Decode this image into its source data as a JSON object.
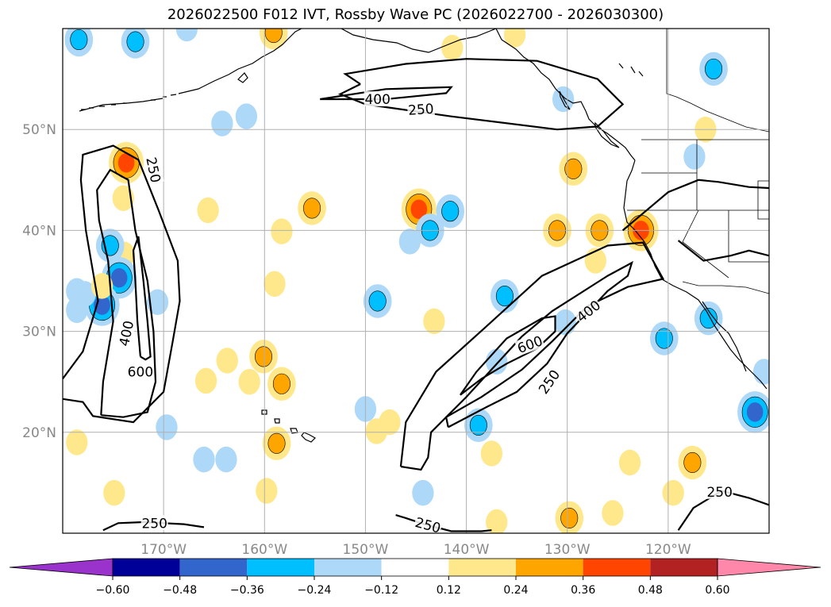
{
  "title": "2026022500 F012 IVT, Rossby Wave PC (2026022700 - 2026030300)",
  "map": {
    "lon_range": [
      -180,
      -110
    ],
    "lat_range": [
      10,
      60
    ],
    "lon_ticks": [
      {
        "value": -170,
        "label": "170°W"
      },
      {
        "value": -160,
        "label": "160°W"
      },
      {
        "value": -150,
        "label": "150°W"
      },
      {
        "value": -140,
        "label": "140°W"
      },
      {
        "value": -130,
        "label": "130°W"
      },
      {
        "value": -120,
        "label": "120°W"
      }
    ],
    "lat_ticks": [
      {
        "value": 20,
        "label": "20°N"
      },
      {
        "value": 30,
        "label": "30°N"
      },
      {
        "value": 40,
        "label": "40°N"
      },
      {
        "value": 50,
        "label": "50°N"
      }
    ],
    "contour_labels": [
      {
        "text": "400",
        "lon": -148.8,
        "lat": 53.0,
        "rot": 0
      },
      {
        "text": "250",
        "lon": -144.5,
        "lat": 52.0,
        "rot": -4
      },
      {
        "text": "250",
        "lon": -171.0,
        "lat": 46.0,
        "rot": 78
      },
      {
        "text": "400",
        "lon": -173.7,
        "lat": 29.8,
        "rot": -78
      },
      {
        "text": "600",
        "lon": -172.3,
        "lat": 26.0,
        "rot": 0
      },
      {
        "text": "600",
        "lon": -133.7,
        "lat": 28.7,
        "rot": -20
      },
      {
        "text": "400",
        "lon": -127.9,
        "lat": 32.0,
        "rot": -38
      },
      {
        "text": "250",
        "lon": -131.8,
        "lat": 25.0,
        "rot": -55
      },
      {
        "text": "250",
        "lon": -170.9,
        "lat": 11.0,
        "rot": 0
      },
      {
        "text": "250",
        "lon": -143.8,
        "lat": 10.8,
        "rot": 15
      },
      {
        "text": "250",
        "lon": -114.9,
        "lat": 14.1,
        "rot": 0
      }
    ],
    "ivt_contours": [
      {
        "level": 250,
        "path": [
          [
            -180,
            25.3
          ],
          [
            -178,
            28
          ],
          [
            -176.5,
            33
          ],
          [
            -177.7,
            40
          ],
          [
            -178.2,
            45
          ],
          [
            -178,
            47.5
          ],
          [
            -175,
            48.4
          ],
          [
            -172.5,
            47
          ],
          [
            -170.5,
            42
          ],
          [
            -168.6,
            37
          ],
          [
            -168.4,
            33
          ],
          [
            -169.1,
            29
          ],
          [
            -170,
            24
          ],
          [
            -173,
            21
          ],
          [
            -177,
            21.6
          ],
          [
            -178,
            23
          ],
          [
            -180,
            23.3
          ]
        ]
      },
      {
        "level": 400,
        "path": [
          [
            -176.2,
            21.7
          ],
          [
            -176,
            25
          ],
          [
            -175,
            31
          ],
          [
            -175.5,
            37
          ],
          [
            -176.4,
            41
          ],
          [
            -176.6,
            44
          ],
          [
            -175.3,
            46
          ],
          [
            -173.5,
            45
          ],
          [
            -172.8,
            40
          ],
          [
            -171.6,
            35
          ],
          [
            -171,
            30
          ],
          [
            -170.8,
            25
          ],
          [
            -171.6,
            22
          ],
          [
            -174,
            21.5
          ],
          [
            -176.2,
            21.7
          ]
        ]
      },
      {
        "level": 600,
        "path": [
          [
            -172.3,
            27.5
          ],
          [
            -172.6,
            31
          ],
          [
            -172.8,
            35
          ],
          [
            -173,
            38
          ],
          [
            -172.5,
            39.4
          ],
          [
            -172,
            35
          ],
          [
            -171.6,
            31
          ],
          [
            -171.3,
            27.5
          ],
          [
            -171.8,
            27.2
          ],
          [
            -172.3,
            27.5
          ]
        ]
      },
      {
        "level": 250,
        "path": [
          [
            -150.5,
            54.5
          ],
          [
            -152,
            55.5
          ],
          [
            -146,
            56.5
          ],
          [
            -140,
            57
          ],
          [
            -133,
            56.8
          ],
          [
            -127,
            55
          ],
          [
            -124.5,
            52.5
          ],
          [
            -127,
            50.3
          ],
          [
            -131,
            50
          ],
          [
            -141.5,
            51.3
          ],
          [
            -150,
            52.5
          ],
          [
            -152.5,
            53.5
          ],
          [
            -150.5,
            54.5
          ]
        ]
      },
      {
        "level": 400,
        "path": [
          [
            -154.5,
            53
          ],
          [
            -148,
            54
          ],
          [
            -141.5,
            54.2
          ],
          [
            -142,
            53.6
          ],
          [
            -148,
            53
          ],
          [
            -154.5,
            53
          ]
        ]
      },
      {
        "level": 250,
        "path": [
          [
            -143.8,
            10.8
          ],
          [
            -141.5,
            10.2
          ],
          [
            -138.5,
            10.2
          ],
          [
            -137.5,
            10.3
          ]
        ]
      },
      {
        "level": 250,
        "path": [
          [
            -142.5,
            10.4
          ],
          [
            -144.5,
            11
          ],
          [
            -146,
            11.5
          ],
          [
            -147,
            11.8
          ]
        ]
      },
      {
        "level": 250,
        "path": [
          [
            -146.5,
            16.6
          ],
          [
            -146,
            21
          ],
          [
            -143,
            26
          ],
          [
            -138,
            30.5
          ],
          [
            -132.5,
            35.5
          ],
          [
            -126,
            38.5
          ],
          [
            -122.5,
            38.8
          ],
          [
            -120.5,
            35.2
          ],
          [
            -124,
            34.4
          ],
          [
            -128,
            32.5
          ],
          [
            -131.5,
            29
          ],
          [
            -134.5,
            26.2
          ],
          [
            -138.5,
            23.5
          ],
          [
            -142,
            21.5
          ],
          [
            -143.5,
            20
          ],
          [
            -143.8,
            17.5
          ],
          [
            -144.5,
            16.3
          ],
          [
            -146.5,
            16.6
          ]
        ]
      },
      {
        "level": 400,
        "path": [
          [
            -141.8,
            20.5
          ],
          [
            -142,
            21.5
          ],
          [
            -140,
            23.5
          ],
          [
            -134.5,
            29.5
          ],
          [
            -131.5,
            32
          ],
          [
            -126,
            35.5
          ],
          [
            -123.6,
            36.8
          ],
          [
            -124,
            35.5
          ],
          [
            -126,
            34
          ],
          [
            -127.6,
            32.3
          ],
          [
            -130,
            29.8
          ],
          [
            -132,
            26.8
          ],
          [
            -135,
            24
          ],
          [
            -138,
            22.5
          ],
          [
            -141.8,
            20.5
          ]
        ]
      },
      {
        "level": 600,
        "path": [
          [
            -140.6,
            23.7
          ],
          [
            -139,
            26
          ],
          [
            -136,
            29.3
          ],
          [
            -132.5,
            31.3
          ],
          [
            -131.2,
            31.5
          ],
          [
            -131.2,
            30
          ],
          [
            -133,
            28.3
          ],
          [
            -136,
            26.8
          ],
          [
            -138.5,
            25.3
          ],
          [
            -140.6,
            23.7
          ]
        ]
      },
      {
        "level": 250,
        "path": [
          [
            -176,
            10.3
          ],
          [
            -174.5,
            11
          ],
          [
            -172,
            11.1
          ],
          [
            -168,
            10.9
          ],
          [
            -166,
            10.6
          ]
        ]
      },
      {
        "level": 250,
        "path": [
          [
            -119,
            10.3
          ],
          [
            -117.5,
            12.5
          ],
          [
            -114.7,
            14.2
          ],
          [
            -112,
            13.5
          ],
          [
            -110,
            12.8
          ]
        ]
      },
      {
        "level": 250,
        "path": [
          [
            -124.5,
            40
          ],
          [
            -120,
            43.8
          ],
          [
            -117,
            45
          ],
          [
            -115,
            44.8
          ],
          [
            -112,
            44.3
          ],
          [
            -110,
            44.2
          ]
        ]
      },
      {
        "level": 250,
        "path": [
          [
            -119,
            39
          ],
          [
            -116.5,
            37
          ],
          [
            -113.8,
            37.5
          ],
          [
            -112,
            38
          ],
          [
            -110,
            37.5
          ]
        ]
      }
    ]
  },
  "colorbar": {
    "levels": [
      "−0.60",
      "−0.48",
      "−0.36",
      "−0.24",
      "−0.12",
      "0.12",
      "0.24",
      "0.36",
      "0.48",
      "0.60"
    ],
    "colors": [
      "#9933cc",
      "#000099",
      "#3366cc",
      "#00bfff",
      "#add8f7",
      "#ffffff",
      "#ffe88c",
      "#ffa500",
      "#ff4500",
      "#b22222",
      "#ff88aa"
    ]
  },
  "blobs": [
    {
      "lon": -173.7,
      "lat": 46.7,
      "v": 0.4
    },
    {
      "lon": -174.0,
      "lat": 43.2,
      "v": 0.2
    },
    {
      "lon": -173.9,
      "lat": 37.6,
      "v": 0.2
    },
    {
      "lon": -174.4,
      "lat": 35.3,
      "v": -0.4
    },
    {
      "lon": -175.3,
      "lat": 38.5,
      "v": -0.3
    },
    {
      "lon": -176.1,
      "lat": 32.6,
      "v": -0.4
    },
    {
      "lon": -177.8,
      "lat": 33.7,
      "v": -0.2
    },
    {
      "lon": -176.1,
      "lat": 34.5,
      "v": 0.2
    },
    {
      "lon": -178.4,
      "lat": 58.9,
      "v": -0.3
    },
    {
      "lon": -172.8,
      "lat": 58.7,
      "v": -0.3
    },
    {
      "lon": -167.7,
      "lat": 60.0,
      "v": -0.2
    },
    {
      "lon": -161.8,
      "lat": 51.3,
      "v": -0.2
    },
    {
      "lon": -164.2,
      "lat": 50.6,
      "v": -0.2
    },
    {
      "lon": -159.1,
      "lat": 59.6,
      "v": 0.3
    },
    {
      "lon": -165.6,
      "lat": 42.0,
      "v": 0.15
    },
    {
      "lon": -155.3,
      "lat": 42.2,
      "v": 0.3
    },
    {
      "lon": -158.3,
      "lat": 39.9,
      "v": 0.15
    },
    {
      "lon": -159.0,
      "lat": 34.7,
      "v": 0.2
    },
    {
      "lon": -160.1,
      "lat": 27.5,
      "v": 0.35
    },
    {
      "lon": -158.3,
      "lat": 24.8,
      "v": 0.35
    },
    {
      "lon": -161.5,
      "lat": 25.0,
      "v": 0.2
    },
    {
      "lon": -163.7,
      "lat": 27.1,
      "v": 0.15
    },
    {
      "lon": -165.8,
      "lat": 25.1,
      "v": 0.15
    },
    {
      "lon": -158.8,
      "lat": 18.9,
      "v": 0.35
    },
    {
      "lon": -159.8,
      "lat": 14.2,
      "v": 0.15
    },
    {
      "lon": -163.8,
      "lat": 17.3,
      "v": -0.2
    },
    {
      "lon": -166.0,
      "lat": 17.3,
      "v": -0.2
    },
    {
      "lon": -169.7,
      "lat": 20.5,
      "v": -0.2
    },
    {
      "lon": -178.6,
      "lat": 19.0,
      "v": 0.15
    },
    {
      "lon": -174.9,
      "lat": 14.0,
      "v": 0.2
    },
    {
      "lon": -178.6,
      "lat": 34.0,
      "v": -0.15
    },
    {
      "lon": -178.6,
      "lat": 32.1,
      "v": -0.15
    },
    {
      "lon": -144.7,
      "lat": 42.1,
      "v": 0.38
    },
    {
      "lon": -141.6,
      "lat": 41.9,
      "v": -0.25
    },
    {
      "lon": -143.6,
      "lat": 40.0,
      "v": -0.25
    },
    {
      "lon": -145.6,
      "lat": 38.9,
      "v": -0.15
    },
    {
      "lon": -148.8,
      "lat": 33.0,
      "v": -0.25
    },
    {
      "lon": -150.0,
      "lat": 22.3,
      "v": -0.2
    },
    {
      "lon": -147.6,
      "lat": 21.0,
      "v": 0.2
    },
    {
      "lon": -148.9,
      "lat": 20.1,
      "v": 0.15
    },
    {
      "lon": -143.2,
      "lat": 31.0,
      "v": 0.15
    },
    {
      "lon": -144.3,
      "lat": 14.0,
      "v": -0.2
    },
    {
      "lon": -138.8,
      "lat": 20.7,
      "v": -0.25
    },
    {
      "lon": -137.5,
      "lat": 17.9,
      "v": 0.2
    },
    {
      "lon": -137.0,
      "lat": 11.1,
      "v": 0.15
    },
    {
      "lon": -136.2,
      "lat": 33.5,
      "v": -0.25
    },
    {
      "lon": -131.0,
      "lat": 40.0,
      "v": 0.3
    },
    {
      "lon": -126.8,
      "lat": 40.0,
      "v": 0.25
    },
    {
      "lon": -129.4,
      "lat": 46.1,
      "v": 0.3
    },
    {
      "lon": -122.7,
      "lat": 40.0,
      "v": 0.42
    },
    {
      "lon": -127.2,
      "lat": 37.0,
      "v": 0.2
    },
    {
      "lon": -129.8,
      "lat": 11.5,
      "v": 0.3
    },
    {
      "lon": -125.5,
      "lat": 12.0,
      "v": 0.2
    },
    {
      "lon": -123.8,
      "lat": 17.0,
      "v": 0.15
    },
    {
      "lon": -117.6,
      "lat": 17.0,
      "v": 0.25
    },
    {
      "lon": -119.5,
      "lat": 14.0,
      "v": 0.15
    },
    {
      "lon": -120.4,
      "lat": 29.3,
      "v": -0.25
    },
    {
      "lon": -116.0,
      "lat": 31.3,
      "v": -0.25
    },
    {
      "lon": -111.4,
      "lat": 22.0,
      "v": -0.45
    },
    {
      "lon": -115.5,
      "lat": 56.0,
      "v": -0.3
    },
    {
      "lon": -116.3,
      "lat": 50.0,
      "v": 0.15
    },
    {
      "lon": -117.4,
      "lat": 47.3,
      "v": -0.2
    },
    {
      "lon": -135.2,
      "lat": 59.4,
      "v": 0.15
    },
    {
      "lon": -141.4,
      "lat": 58.1,
      "v": 0.15
    },
    {
      "lon": -130.4,
      "lat": 53.0,
      "v": -0.15
    },
    {
      "lon": -130.2,
      "lat": 30.9,
      "v": -0.2
    },
    {
      "lon": -170.6,
      "lat": 32.9,
      "v": -0.15
    },
    {
      "lon": -137.0,
      "lat": 27.0,
      "v": -0.15
    },
    {
      "lon": -110.5,
      "lat": 26.0,
      "v": -0.15
    }
  ]
}
